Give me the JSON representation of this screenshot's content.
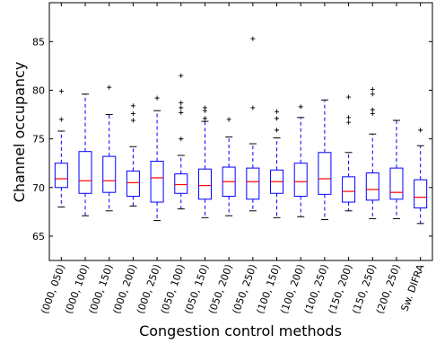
{
  "chart_data": {
    "type": "box",
    "title": "",
    "xlabel": "Congestion control methods",
    "ylabel": "Channel occupancy",
    "ylim": [
      62.5,
      89
    ],
    "yticks": [
      65,
      70,
      75,
      80,
      85
    ],
    "grid": false,
    "legend": "none",
    "colors": {
      "box": "#0000ff",
      "whisker": "#0000ff",
      "median": "#ff0000",
      "outlier": "#000000"
    },
    "categories": [
      "(000, 050)",
      "(000, 100)",
      "(000, 150)",
      "(000, 200)",
      "(000, 250)",
      "(050, 100)",
      "(050, 150)",
      "(050, 200)",
      "(050, 250)",
      "(100, 150)",
      "(100, 200)",
      "(100, 250)",
      "(150, 200)",
      "(150, 250)",
      "(200, 250)",
      "Sw. DIFRA"
    ],
    "boxes": [
      {
        "whislo": 68.0,
        "q1": 70.0,
        "med": 70.9,
        "q3": 72.5,
        "whishi": 75.8,
        "fliers": [
          77.0,
          79.9
        ]
      },
      {
        "whislo": 67.1,
        "q1": 69.4,
        "med": 70.7,
        "q3": 73.7,
        "whishi": 79.6,
        "fliers": []
      },
      {
        "whislo": 67.6,
        "q1": 69.5,
        "med": 70.7,
        "q3": 73.2,
        "whishi": 77.5,
        "fliers": [
          80.3
        ]
      },
      {
        "whislo": 68.1,
        "q1": 69.1,
        "med": 70.5,
        "q3": 71.7,
        "whishi": 74.2,
        "fliers": [
          76.9,
          77.6,
          78.4
        ]
      },
      {
        "whislo": 66.6,
        "q1": 68.5,
        "med": 71.0,
        "q3": 72.7,
        "whishi": 77.9,
        "fliers": [
          79.2
        ]
      },
      {
        "whislo": 67.8,
        "q1": 69.4,
        "med": 70.3,
        "q3": 71.4,
        "whishi": 73.3,
        "fliers": [
          75.0,
          77.7,
          78.2,
          78.7,
          81.5
        ]
      },
      {
        "whislo": 66.9,
        "q1": 68.8,
        "med": 70.2,
        "q3": 71.9,
        "whishi": 76.8,
        "fliers": [
          77.1,
          77.9,
          78.2
        ]
      },
      {
        "whislo": 67.1,
        "q1": 69.1,
        "med": 70.6,
        "q3": 72.1,
        "whishi": 75.2,
        "fliers": [
          77.0
        ]
      },
      {
        "whislo": 67.6,
        "q1": 68.8,
        "med": 70.6,
        "q3": 72.0,
        "whishi": 74.5,
        "fliers": [
          78.2,
          85.3
        ]
      },
      {
        "whislo": 66.9,
        "q1": 69.4,
        "med": 70.6,
        "q3": 71.8,
        "whishi": 75.1,
        "fliers": [
          75.9,
          77.1,
          77.8
        ]
      },
      {
        "whislo": 67.0,
        "q1": 69.1,
        "med": 70.6,
        "q3": 72.5,
        "whishi": 77.2,
        "fliers": [
          78.3
        ]
      },
      {
        "whislo": 66.7,
        "q1": 69.3,
        "med": 70.9,
        "q3": 73.6,
        "whishi": 79.0,
        "fliers": []
      },
      {
        "whislo": 67.6,
        "q1": 68.5,
        "med": 69.6,
        "q3": 71.1,
        "whishi": 73.6,
        "fliers": [
          76.7,
          77.2,
          79.3
        ]
      },
      {
        "whislo": 66.8,
        "q1": 68.7,
        "med": 69.8,
        "q3": 71.5,
        "whishi": 75.5,
        "fliers": [
          77.6,
          78.0,
          79.6,
          80.1
        ]
      },
      {
        "whislo": 66.8,
        "q1": 68.8,
        "med": 69.5,
        "q3": 72.0,
        "whishi": 76.9,
        "fliers": []
      },
      {
        "whislo": 66.3,
        "q1": 67.9,
        "med": 69.0,
        "q3": 70.8,
        "whishi": 74.3,
        "fliers": [
          75.9
        ]
      }
    ]
  }
}
